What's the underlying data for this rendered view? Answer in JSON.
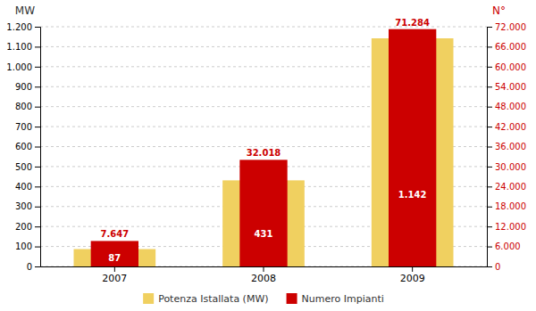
{
  "chart_data": {
    "type": "bar",
    "categories": [
      "2007",
      "2008",
      "2009"
    ],
    "series": [
      {
        "name": "Potenza Istallata (MW)",
        "color": "#F0D060",
        "values": [
          87,
          431,
          1142
        ],
        "value_labels": [
          "87",
          "431",
          "1.142"
        ]
      },
      {
        "name": "Numero Impianti",
        "color": "#CC0000",
        "axis": "y2",
        "values": [
          7647,
          32018,
          71284
        ],
        "value_labels": [
          "7.647",
          "32.018",
          "71.284"
        ]
      }
    ],
    "ylabel": "MW",
    "y2label": "N°",
    "ylim": [
      0,
      1200
    ],
    "yticks": [
      0,
      100,
      200,
      300,
      400,
      500,
      600,
      700,
      800,
      900,
      {
        "value": 1000,
        "label": "1.000"
      },
      {
        "value": 1100,
        "label": "1.100"
      },
      {
        "value": 1200,
        "label": "1.200"
      }
    ],
    "y2lim": [
      0,
      72000
    ],
    "y2ticks": [
      0,
      {
        "value": 6000,
        "label": "6.000"
      },
      {
        "value": 12000,
        "label": "12.000"
      },
      {
        "value": 18000,
        "label": "18.000"
      },
      {
        "value": 24000,
        "label": "24.000"
      },
      {
        "value": 30000,
        "label": "30.000"
      },
      {
        "value": 36000,
        "label": "36.000"
      },
      {
        "value": 42000,
        "label": "42.000"
      },
      {
        "value": 48000,
        "label": "48.000"
      },
      {
        "value": 54000,
        "label": "54.000"
      },
      {
        "value": 60000,
        "label": "60.000"
      },
      {
        "value": 66000,
        "label": "66.000"
      },
      {
        "value": 72000,
        "label": "72.000"
      }
    ],
    "grid": true,
    "legend": "bottom",
    "data_labels": true
  }
}
